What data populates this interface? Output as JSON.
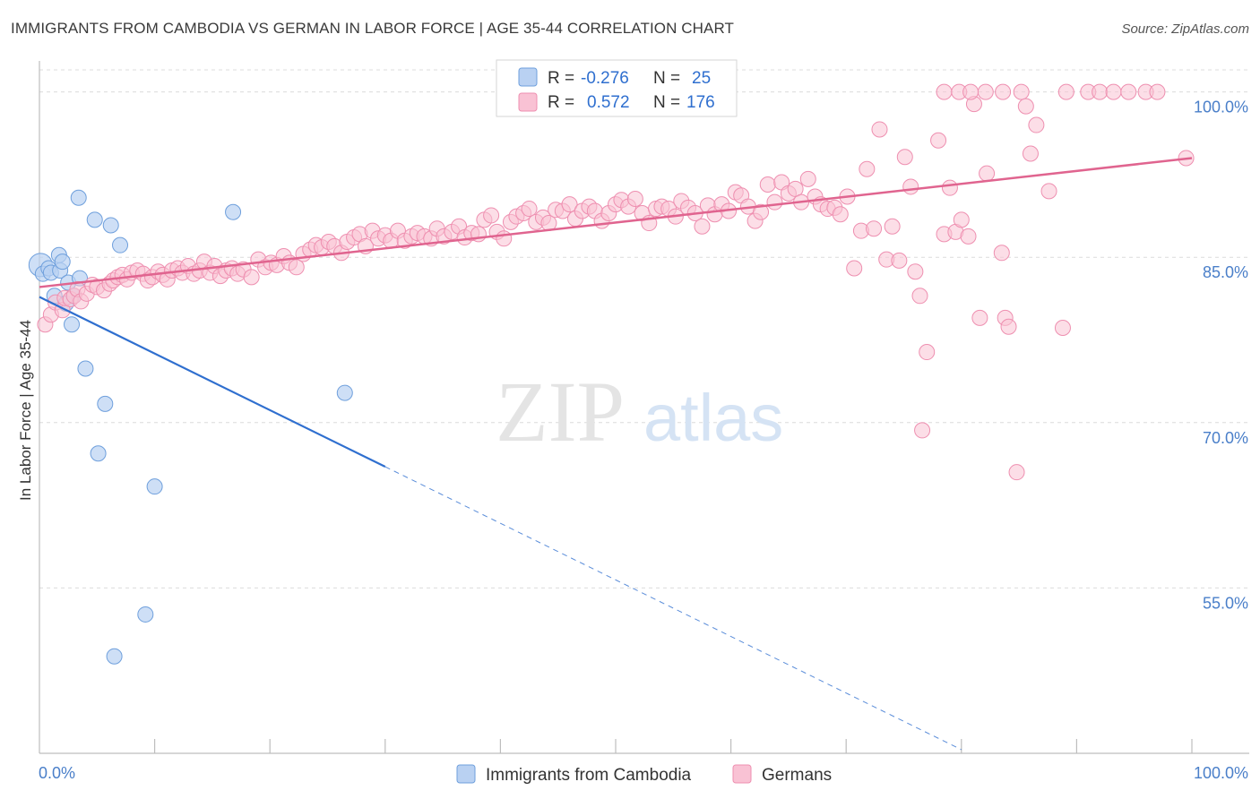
{
  "title": "IMMIGRANTS FROM CAMBODIA VS GERMAN IN LABOR FORCE | AGE 35-44 CORRELATION CHART",
  "source": "Source: ZipAtlas.com",
  "watermark": {
    "zip": "ZIP",
    "atlas": "atlas"
  },
  "colors": {
    "cambodia_fill": "#b9d1f2",
    "cambodia_stroke": "#6e9fdc",
    "cambodia_line": "#2f6fcf",
    "germans_fill": "#f9c2d4",
    "germans_stroke": "#ee8fb0",
    "germans_line": "#e0648f",
    "tick_text": "#4a7fc9",
    "grid": "#dcdcdc"
  },
  "legend": {
    "rows": [
      {
        "r_label": "R =",
        "r_value": "-0.276",
        "n_label": "N =",
        "n_value": "25"
      },
      {
        "r_label": "R =",
        "r_value": "0.572",
        "n_label": "N =",
        "n_value": "176"
      }
    ]
  },
  "bottom_legend": [
    "Immigrants from Cambodia",
    "Germans"
  ],
  "chart_data": {
    "type": "scatter",
    "xlabel": "",
    "ylabel": "In Labor Force | Age 35-44",
    "xlim": [
      0,
      100
    ],
    "ylim": [
      40,
      102
    ],
    "x_tick_labels": [
      "0.0%",
      "100.0%"
    ],
    "y_ticks": [
      55,
      70,
      85,
      100
    ],
    "y_tick_labels": [
      "55.0%",
      "70.0%",
      "85.0%",
      "100.0%"
    ],
    "grid": true,
    "legend_position": "top-center",
    "series": [
      {
        "name": "Immigrants from Cambodia",
        "r": -0.276,
        "n": 25,
        "points": [
          [
            0.1,
            84.3
          ],
          [
            0.3,
            83.5
          ],
          [
            0.8,
            84.0
          ],
          [
            1.0,
            83.6
          ],
          [
            1.3,
            81.5
          ],
          [
            1.7,
            85.2
          ],
          [
            1.8,
            83.8
          ],
          [
            2.0,
            84.6
          ],
          [
            2.3,
            80.8
          ],
          [
            2.5,
            82.7
          ],
          [
            2.8,
            78.9
          ],
          [
            3.0,
            81.5
          ],
          [
            3.5,
            83.1
          ],
          [
            3.4,
            90.4
          ],
          [
            4.0,
            74.9
          ],
          [
            4.8,
            88.4
          ],
          [
            5.1,
            67.2
          ],
          [
            5.7,
            71.7
          ],
          [
            6.2,
            87.9
          ],
          [
            7.0,
            86.1
          ],
          [
            10.0,
            64.2
          ],
          [
            9.2,
            52.6
          ],
          [
            6.5,
            48.8
          ],
          [
            16.8,
            89.1
          ],
          [
            26.5,
            72.7
          ]
        ],
        "trend": {
          "x0": 0,
          "y0": 81.4,
          "x1": 30,
          "y1": 66.0,
          "dashed_to_x": 80
        }
      },
      {
        "name": "Germans",
        "r": 0.572,
        "n": 176,
        "trend": {
          "x0": 0,
          "y0": 82.3,
          "x1": 100,
          "y1": 94.0
        },
        "points": [
          [
            0.5,
            78.9
          ],
          [
            1.0,
            79.8
          ],
          [
            1.4,
            80.9
          ],
          [
            2.0,
            80.2
          ],
          [
            2.2,
            81.3
          ],
          [
            2.7,
            81.2
          ],
          [
            3.0,
            81.5
          ],
          [
            3.3,
            82.1
          ],
          [
            3.6,
            81.0
          ],
          [
            4.1,
            81.7
          ],
          [
            4.6,
            82.5
          ],
          [
            5.0,
            82.3
          ],
          [
            5.6,
            82.0
          ],
          [
            6.1,
            82.6
          ],
          [
            6.4,
            82.9
          ],
          [
            6.8,
            83.2
          ],
          [
            7.2,
            83.4
          ],
          [
            7.6,
            83.0
          ],
          [
            8.0,
            83.6
          ],
          [
            8.5,
            83.8
          ],
          [
            9.0,
            83.5
          ],
          [
            9.4,
            82.9
          ],
          [
            9.8,
            83.2
          ],
          [
            10.3,
            83.7
          ],
          [
            10.7,
            83.4
          ],
          [
            11.1,
            83.0
          ],
          [
            11.5,
            83.8
          ],
          [
            12.0,
            84.0
          ],
          [
            12.4,
            83.6
          ],
          [
            12.9,
            84.2
          ],
          [
            13.4,
            83.5
          ],
          [
            13.9,
            83.8
          ],
          [
            14.3,
            84.6
          ],
          [
            14.8,
            83.6
          ],
          [
            15.2,
            84.2
          ],
          [
            15.7,
            83.3
          ],
          [
            16.2,
            83.8
          ],
          [
            16.7,
            84.0
          ],
          [
            17.2,
            83.5
          ],
          [
            17.7,
            83.9
          ],
          [
            18.4,
            83.2
          ],
          [
            19.0,
            84.8
          ],
          [
            19.6,
            84.1
          ],
          [
            20.1,
            84.5
          ],
          [
            20.6,
            84.3
          ],
          [
            21.2,
            85.1
          ],
          [
            21.7,
            84.5
          ],
          [
            22.3,
            84.1
          ],
          [
            22.9,
            85.3
          ],
          [
            23.5,
            85.7
          ],
          [
            24.0,
            86.1
          ],
          [
            24.5,
            85.9
          ],
          [
            25.1,
            86.4
          ],
          [
            25.6,
            86.0
          ],
          [
            26.2,
            85.4
          ],
          [
            26.7,
            86.4
          ],
          [
            27.3,
            86.8
          ],
          [
            27.8,
            87.1
          ],
          [
            28.3,
            86.0
          ],
          [
            28.9,
            87.4
          ],
          [
            29.4,
            86.7
          ],
          [
            30.0,
            87.0
          ],
          [
            30.5,
            86.5
          ],
          [
            31.1,
            87.4
          ],
          [
            31.7,
            86.5
          ],
          [
            32.3,
            86.9
          ],
          [
            32.8,
            87.2
          ],
          [
            33.4,
            86.9
          ],
          [
            34.0,
            86.7
          ],
          [
            34.5,
            87.6
          ],
          [
            35.1,
            86.9
          ],
          [
            35.8,
            87.3
          ],
          [
            36.4,
            87.8
          ],
          [
            36.9,
            86.8
          ],
          [
            37.5,
            87.2
          ],
          [
            38.1,
            87.1
          ],
          [
            38.6,
            88.4
          ],
          [
            39.2,
            88.8
          ],
          [
            39.7,
            87.3
          ],
          [
            40.3,
            86.7
          ],
          [
            40.9,
            88.2
          ],
          [
            41.4,
            88.7
          ],
          [
            42.0,
            89.0
          ],
          [
            42.5,
            89.4
          ],
          [
            43.1,
            88.2
          ],
          [
            43.7,
            88.6
          ],
          [
            44.2,
            88.1
          ],
          [
            44.8,
            89.3
          ],
          [
            45.4,
            89.2
          ],
          [
            46.0,
            89.8
          ],
          [
            46.5,
            88.5
          ],
          [
            47.1,
            89.2
          ],
          [
            47.7,
            89.6
          ],
          [
            48.2,
            89.2
          ],
          [
            48.8,
            88.3
          ],
          [
            49.4,
            89.0
          ],
          [
            50.0,
            89.8
          ],
          [
            50.5,
            90.2
          ],
          [
            51.1,
            89.6
          ],
          [
            51.7,
            90.3
          ],
          [
            52.3,
            89.0
          ],
          [
            52.9,
            88.1
          ],
          [
            53.5,
            89.4
          ],
          [
            54.0,
            89.6
          ],
          [
            54.6,
            89.4
          ],
          [
            55.2,
            88.7
          ],
          [
            55.7,
            90.1
          ],
          [
            56.3,
            89.5
          ],
          [
            56.9,
            89.0
          ],
          [
            57.5,
            87.8
          ],
          [
            58.0,
            89.7
          ],
          [
            58.6,
            88.9
          ],
          [
            59.2,
            89.8
          ],
          [
            59.8,
            89.2
          ],
          [
            60.4,
            90.9
          ],
          [
            60.9,
            90.6
          ],
          [
            61.5,
            89.6
          ],
          [
            62.1,
            88.3
          ],
          [
            62.6,
            89.1
          ],
          [
            63.2,
            91.6
          ],
          [
            63.8,
            90.0
          ],
          [
            64.4,
            91.8
          ],
          [
            65.0,
            90.8
          ],
          [
            65.6,
            91.2
          ],
          [
            66.1,
            90.0
          ],
          [
            66.7,
            92.1
          ],
          [
            67.3,
            90.5
          ],
          [
            67.8,
            89.8
          ],
          [
            68.4,
            89.4
          ],
          [
            69.0,
            89.5
          ],
          [
            69.5,
            88.9
          ],
          [
            70.1,
            90.5
          ],
          [
            70.7,
            84.0
          ],
          [
            71.3,
            87.4
          ],
          [
            71.8,
            93.0
          ],
          [
            72.4,
            87.6
          ],
          [
            72.9,
            96.6
          ],
          [
            73.5,
            84.8
          ],
          [
            74.0,
            87.8
          ],
          [
            74.6,
            84.7
          ],
          [
            75.1,
            94.1
          ],
          [
            75.6,
            91.4
          ],
          [
            76.0,
            83.7
          ],
          [
            76.4,
            81.5
          ],
          [
            77.0,
            76.4
          ],
          [
            76.6,
            69.3
          ],
          [
            78.0,
            95.6
          ],
          [
            78.5,
            87.1
          ],
          [
            79.0,
            91.3
          ],
          [
            79.5,
            87.3
          ],
          [
            80.0,
            88.4
          ],
          [
            80.6,
            86.9
          ],
          [
            81.1,
            98.9
          ],
          [
            81.6,
            79.5
          ],
          [
            82.2,
            92.6
          ],
          [
            83.5,
            85.4
          ],
          [
            83.8,
            79.5
          ],
          [
            84.1,
            78.7
          ],
          [
            84.8,
            65.5
          ],
          [
            85.2,
            100.0
          ],
          [
            85.6,
            98.7
          ],
          [
            86.0,
            94.4
          ],
          [
            86.5,
            97.0
          ],
          [
            87.6,
            91.0
          ],
          [
            89.1,
            100.0
          ],
          [
            88.8,
            78.6
          ],
          [
            91.0,
            100.0
          ],
          [
            92.0,
            100.0
          ],
          [
            93.2,
            100.0
          ],
          [
            94.5,
            100.0
          ],
          [
            96.0,
            100.0
          ],
          [
            97.0,
            100.0
          ],
          [
            78.5,
            100.0
          ],
          [
            79.8,
            100.0
          ],
          [
            80.8,
            100.0
          ],
          [
            82.1,
            100.0
          ],
          [
            83.6,
            100.0
          ],
          [
            99.5,
            94.0
          ]
        ]
      }
    ]
  }
}
